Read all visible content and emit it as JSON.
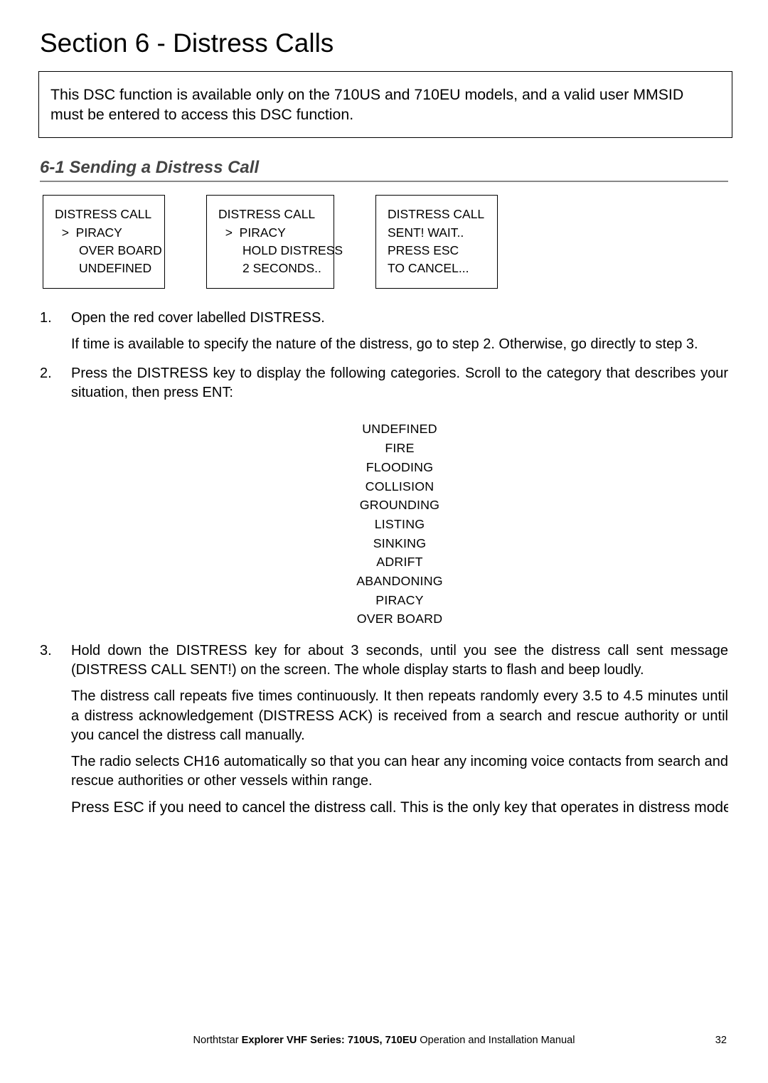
{
  "section_title": "Section 6 - Distress Calls",
  "note_box": "This DSC function is available only on the 710US and 710EU models, and a valid user MMSID must be entered to access this DSC function.",
  "subhead": "6-1 Sending a Distress Call",
  "screens": {
    "s1": {
      "l1": "DISTRESS CALL",
      "l2": "  >  PIRACY",
      "l3": "       OVER BOARD",
      "l4": "       UNDEFINED"
    },
    "s2": {
      "l1": "DISTRESS CALL",
      "l2": "  >  PIRACY",
      "l3": "       HOLD DISTRESS",
      "l4": "       2 SECONDS.."
    },
    "s3": {
      "l1": "DISTRESS CALL",
      "l2": "SENT! WAIT..",
      "l3": "PRESS ESC",
      "l4": "TO CANCEL..."
    }
  },
  "steps": {
    "s1a": "Open the red cover labelled DISTRESS.",
    "s1b": "If time is available to specify the nature of the distress, go to step 2. Otherwise, go directly to step 3.",
    "s2": "Press the DISTRESS key to display the following categories. Scroll to the category that describes your situation, then press ENT:",
    "s3a": "Hold down the DISTRESS key for about 3 seconds, until you see the distress call sent message (DISTRESS CALL SENT!) on the screen. The whole display starts to flash and beep loudly.",
    "s3b": "The distress call repeats five times continuously. It then repeats randomly every 3.5 to 4.5 minutes until a distress acknowledgement (DISTRESS ACK) is received from a search and rescue authority or until you cancel the distress call manually.",
    "s3c": "The radio selects CH16 automatically so that you can hear any incoming voice contacts from search and rescue authorities or other vessels within range.",
    "esc": "Press ESC if you need to cancel the distress call. This is the only key that operates in distress mode."
  },
  "categories": [
    "UNDEFINED",
    "FIRE",
    "FLOODING",
    "COLLISION",
    "GROUNDING",
    "LISTING",
    "SINKING",
    "ADRIFT",
    "ABANDONING",
    "PIRACY",
    "OVER BOARD"
  ],
  "footer": {
    "prefix": "Northtstar ",
    "bold": "Explorer VHF Series: 710US, 710EU",
    "suffix": " Operation and Installation Manual",
    "page": "32"
  },
  "style": {
    "subhead_color": "#444444",
    "rule_color": "#888888",
    "background": "#ffffff",
    "title_fontsize": 37,
    "subhead_fontsize": 24,
    "body_fontsize": 20,
    "screen_fontsize": 17.5,
    "catlist_fontsize": 17.8,
    "footer_fontsize": 14.6
  }
}
